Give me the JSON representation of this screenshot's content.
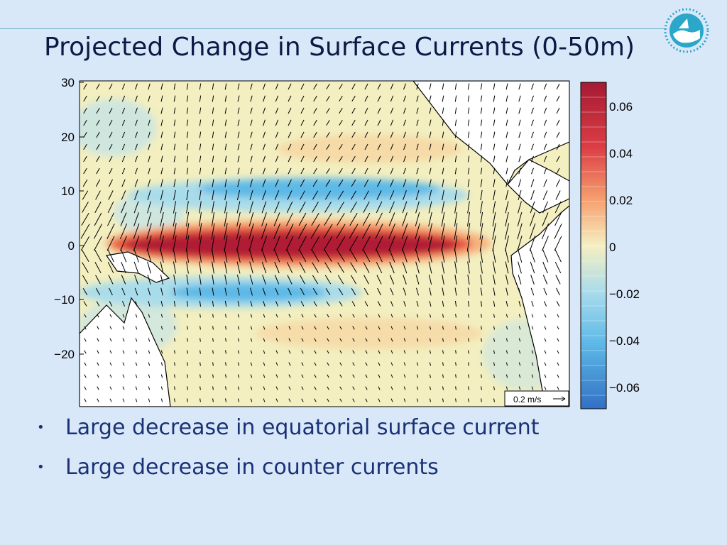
{
  "slide": {
    "title": "Projected Change in Surface Currents (0-50m)",
    "bullets": [
      "Large decrease in equatorial surface current",
      "Large decrease in counter currents"
    ]
  },
  "map": {
    "latitude_ticks": [
      "30",
      "20",
      "10",
      "0",
      "−10",
      "−20"
    ],
    "reference_arrow_label": "0.2 m/s",
    "colorbar": {
      "tick_labels": [
        "0.06",
        "0.04",
        "0.02",
        "0",
        "−0.02",
        "−0.04",
        "−0.06"
      ],
      "range": [
        -0.07,
        0.07
      ]
    },
    "colors": {
      "strong_positive": "#b01a35",
      "moderate_positive": "#e8563f",
      "weak_positive": "#f5c27f",
      "near_zero": "#f3efc0",
      "weak_negative": "#a9dcea",
      "strong_negative": "#3b8fd4",
      "land": "#ffffff"
    },
    "features": [
      "equatorial positive anomaly band near 0°",
      "negative anomaly band near 8°N",
      "negative anomaly band near 8°S"
    ]
  },
  "icons": {
    "logo": "agency-logo-icon"
  }
}
